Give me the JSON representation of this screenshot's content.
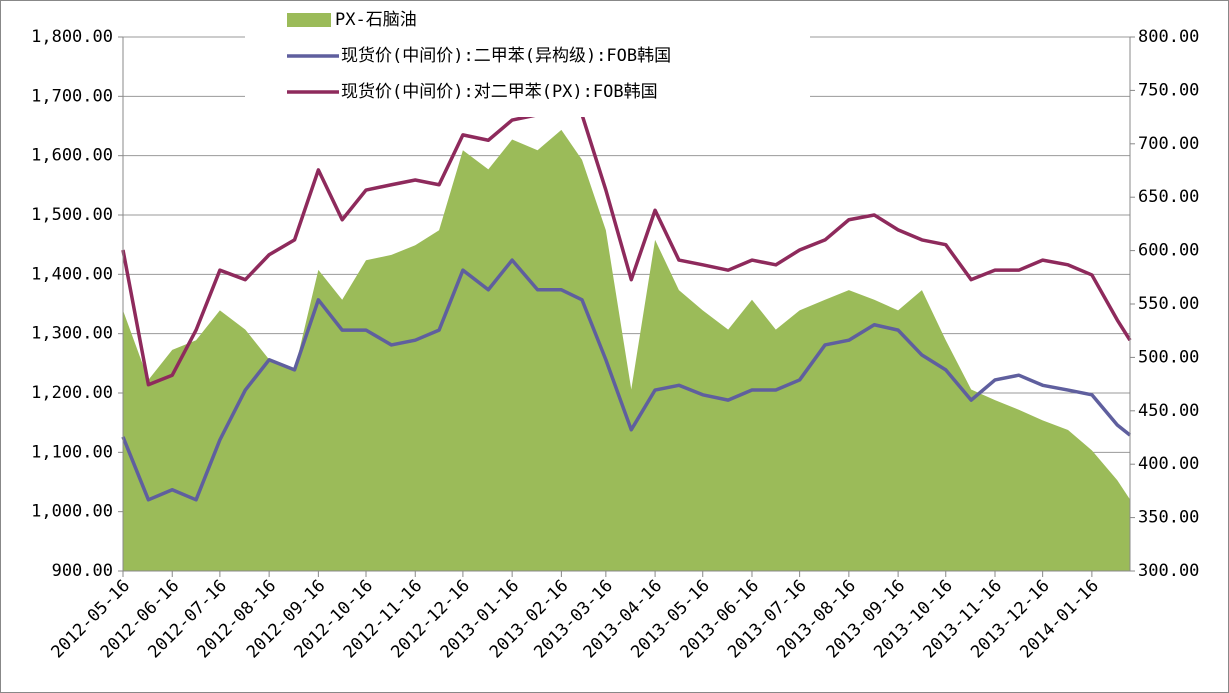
{
  "chart_data": {
    "type": "line",
    "x": [
      "2012-05-16",
      "2012-06-01",
      "2012-06-16",
      "2012-07-01",
      "2012-07-16",
      "2012-08-01",
      "2012-08-16",
      "2012-09-01",
      "2012-09-16",
      "2012-10-01",
      "2012-10-16",
      "2012-11-01",
      "2012-11-16",
      "2012-12-01",
      "2012-12-16",
      "2013-01-01",
      "2013-01-16",
      "2013-02-01",
      "2013-02-16",
      "2013-03-01",
      "2013-03-16",
      "2013-04-01",
      "2013-04-16",
      "2013-05-01",
      "2013-05-16",
      "2013-06-01",
      "2013-06-16",
      "2013-07-01",
      "2013-07-16",
      "2013-08-01",
      "2013-08-16",
      "2013-09-01",
      "2013-09-16",
      "2013-10-01",
      "2013-10-16",
      "2013-11-01",
      "2013-11-16",
      "2013-12-01",
      "2013-12-16",
      "2014-01-01",
      "2014-01-16",
      "2014-02-01",
      "2014-02-09"
    ],
    "series": [
      {
        "name": "PX-石脑油",
        "type": "area",
        "axis": "y2",
        "color": "#9bbb59",
        "values": [
          544,
          479,
          507,
          516,
          544,
          526,
          498,
          488,
          582,
          554,
          591,
          596,
          605,
          619,
          694,
          676,
          704,
          694,
          713,
          685,
          619,
          470,
          610,
          563,
          544,
          526,
          554,
          526,
          544,
          554,
          563,
          554,
          544,
          563,
          516,
          470,
          460,
          451,
          441,
          432,
          413,
          385,
          367
        ]
      },
      {
        "name": "现货价(中间价):二甲苯(异构级):FOB韩国",
        "color": "#5f5f9e",
        "values": [
          1126,
          1020,
          1037,
          1020,
          1121,
          1205,
          1256,
          1239,
          1357,
          1306,
          1306,
          1281,
          1289,
          1306,
          1407,
          1374,
          1424,
          1374,
          1374,
          1357,
          1256,
          1138,
          1205,
          1213,
          1197,
          1188,
          1205,
          1205,
          1222,
          1281,
          1289,
          1315,
          1306,
          1264,
          1239,
          1188,
          1222,
          1230,
          1213,
          1205,
          1197,
          1146,
          1129
        ]
      },
      {
        "name": "现货价(中间价):对二甲苯(PX):FOB韩国",
        "color": "#8e2a5c",
        "values": [
          1441,
          1214,
          1230,
          1306,
          1407,
          1391,
          1433,
          1458,
          1576,
          1492,
          1542,
          1551,
          1559,
          1551,
          1635,
          1626,
          1660,
          1669,
          1677,
          1669,
          1542,
          1391,
          1508,
          1424,
          1416,
          1407,
          1424,
          1416,
          1441,
          1458,
          1492,
          1500,
          1475,
          1458,
          1450,
          1391,
          1407,
          1407,
          1424,
          1416,
          1399,
          1323,
          1289
        ]
      }
    ],
    "xlim": [
      "2012-05-16",
      "2014-02-09"
    ],
    "xticks": [
      "2012-05-16",
      "2012-06-16",
      "2012-07-16",
      "2012-08-16",
      "2012-09-16",
      "2012-10-16",
      "2012-11-16",
      "2012-12-16",
      "2013-01-16",
      "2013-02-16",
      "2013-03-16",
      "2013-04-16",
      "2013-05-16",
      "2013-06-16",
      "2013-07-16",
      "2013-08-16",
      "2013-09-16",
      "2013-10-16",
      "2013-11-16",
      "2013-12-16",
      "2014-01-16"
    ],
    "ylim": [
      900,
      1800
    ],
    "yticks": [
      {
        "value": 900,
        "label": "900.00"
      },
      {
        "value": 1000,
        "label": "1,000.00"
      },
      {
        "value": 1100,
        "label": "1,100.00"
      },
      {
        "value": 1200,
        "label": "1,200.00"
      },
      {
        "value": 1300,
        "label": "1,300.00"
      },
      {
        "value": 1400,
        "label": "1,400.00"
      },
      {
        "value": 1500,
        "label": "1,500.00"
      },
      {
        "value": 1600,
        "label": "1,600.00"
      },
      {
        "value": 1700,
        "label": "1,700.00"
      },
      {
        "value": 1800,
        "label": "1,800.00"
      }
    ],
    "y2lim": [
      300,
      800
    ],
    "y2ticks": [
      {
        "value": 300,
        "label": "300.00"
      },
      {
        "value": 350,
        "label": "350.00"
      },
      {
        "value": 400,
        "label": "400.00"
      },
      {
        "value": 450,
        "label": "450.00"
      },
      {
        "value": 500,
        "label": "500.00"
      },
      {
        "value": 550,
        "label": "550.00"
      },
      {
        "value": 600,
        "label": "600.00"
      },
      {
        "value": 650,
        "label": "650.00"
      },
      {
        "value": 700,
        "label": "700.00"
      },
      {
        "value": 750,
        "label": "750.00"
      },
      {
        "value": 800,
        "label": "800.00"
      }
    ],
    "grid": true,
    "legend": "top-left"
  }
}
